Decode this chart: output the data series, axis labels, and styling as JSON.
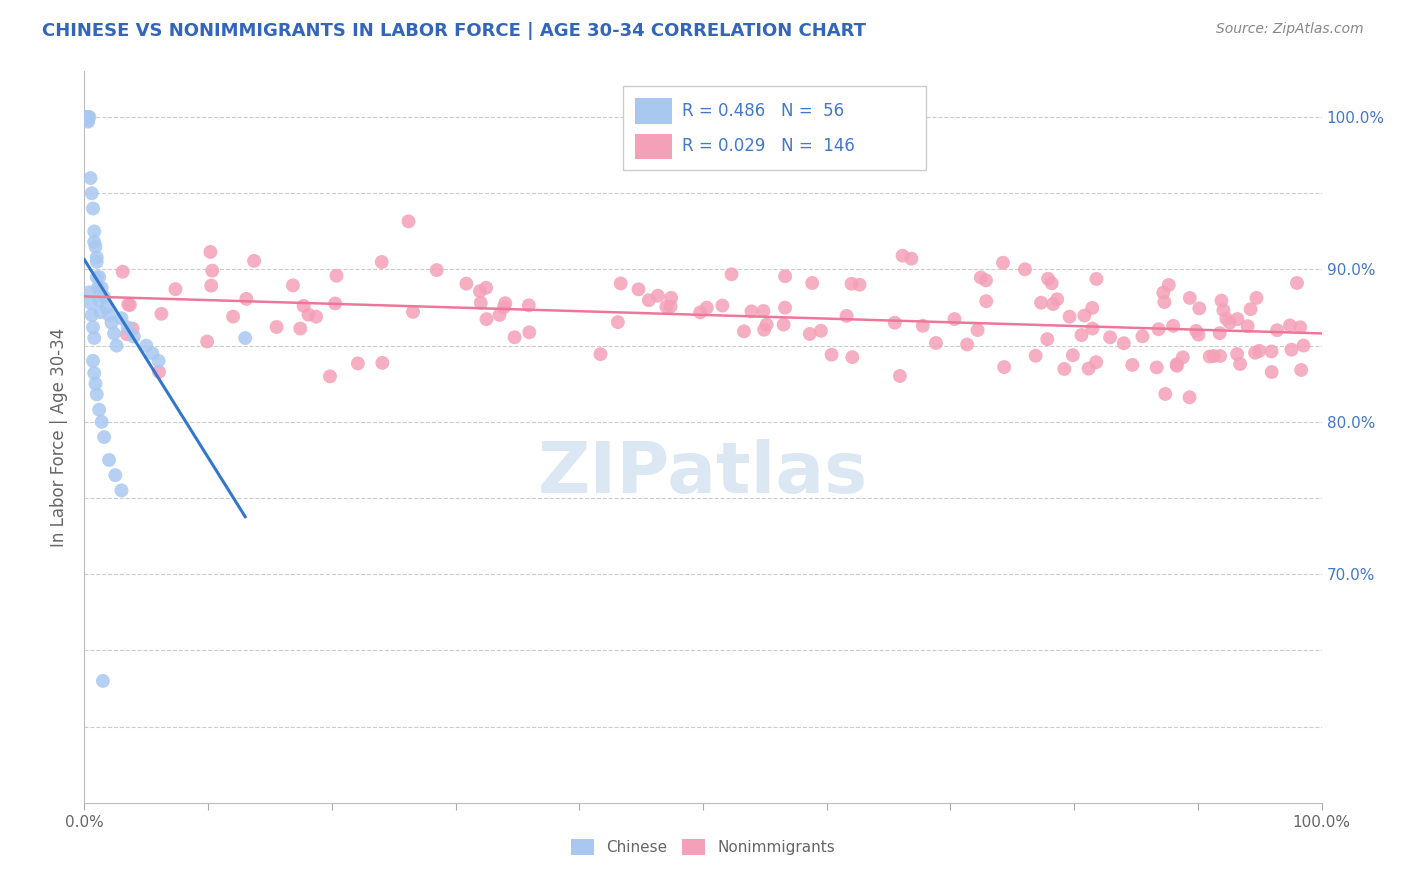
{
  "title": "CHINESE VS NONIMMIGRANTS IN LABOR FORCE | AGE 30-34 CORRELATION CHART",
  "source": "Source: ZipAtlas.com",
  "ylabel": "In Labor Force | Age 30-34",
  "chinese_R": 0.486,
  "chinese_N": 56,
  "nonimm_R": 0.029,
  "nonimm_N": 146,
  "chinese_color": "#a8c8f0",
  "nonimm_color": "#f4a0b8",
  "chinese_line_color": "#3377cc",
  "nonimm_line_color": "#ee7799",
  "legend_text_color": "#4477cc",
  "title_color": "#3366bb",
  "source_color": "#888888",
  "watermark_color": "#ccddef",
  "background_color": "#ffffff",
  "grid_color": "#cccccc",
  "right_tick_color": "#4477cc",
  "ylim_low": 0.55,
  "ylim_high": 1.03,
  "ytick_positions": [
    0.6,
    0.65,
    0.7,
    0.75,
    0.8,
    0.85,
    0.9,
    0.95,
    1.0
  ],
  "ytick_labels": [
    "",
    "",
    "70.0%",
    "",
    "80.0%",
    "",
    "90.0%",
    "",
    "100.0%"
  ]
}
